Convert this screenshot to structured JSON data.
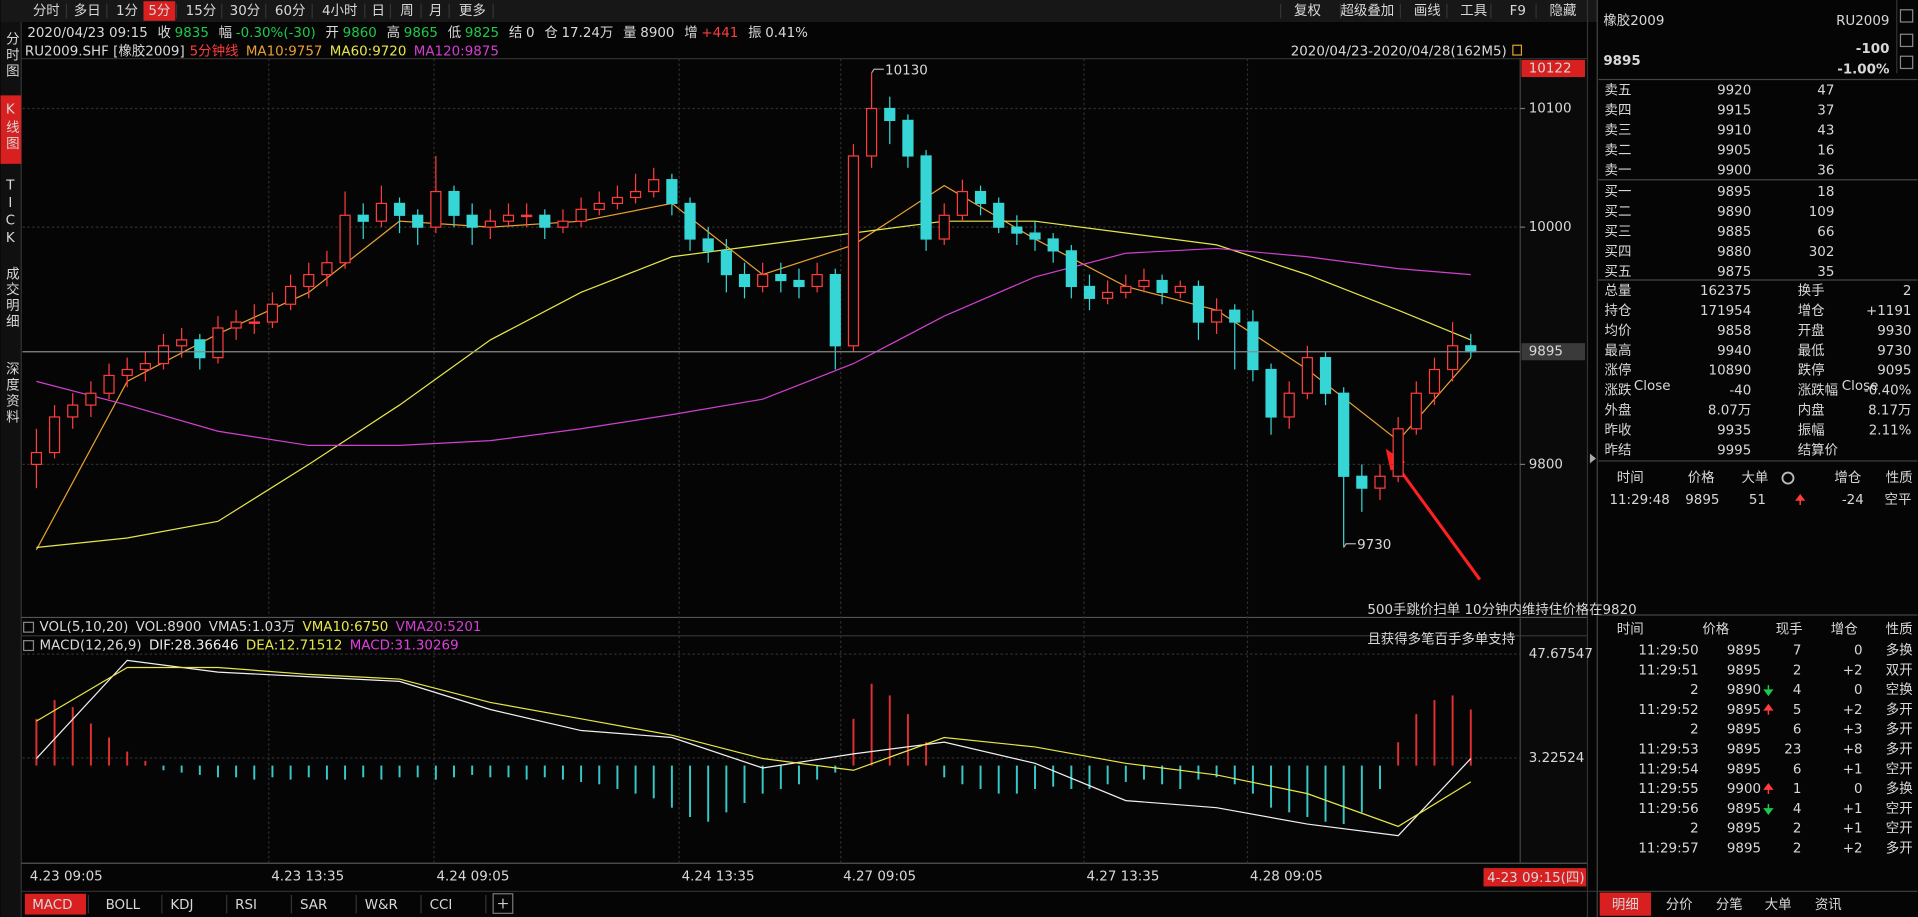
{
  "toolbar": {
    "periods": [
      "分时",
      "多日",
      "1分",
      "5分",
      "15分",
      "30分",
      "60分",
      "4小时",
      "日",
      "周",
      "月",
      "更多"
    ],
    "active_period": 3,
    "tools": [
      "复权",
      "超级叠加",
      "画线",
      "工具",
      "F9",
      "隐藏"
    ]
  },
  "sidebar": {
    "tabs": [
      "分时图",
      "K线图",
      "TICK",
      "成交明细",
      "深度资料"
    ],
    "active": 1
  },
  "quote_bar": {
    "time": "2020/04/23 09:15",
    "fields": [
      {
        "label": "收",
        "value": "9835",
        "color": "#1ec84b"
      },
      {
        "label": "幅",
        "value": "-0.30%(-30)",
        "color": "#1ec84b"
      },
      {
        "label": "开",
        "value": "9860",
        "color": "#1ec84b"
      },
      {
        "label": "高",
        "value": "9865",
        "color": "#1ec84b"
      },
      {
        "label": "低",
        "value": "9825",
        "color": "#1ec84b"
      },
      {
        "label": "结",
        "value": "0",
        "color": "#d8d8d8"
      },
      {
        "label": "仓",
        "value": "17.24万",
        "color": "#d8d8d8"
      },
      {
        "label": "量",
        "value": "8900",
        "color": "#d8d8d8"
      },
      {
        "label": "增",
        "value": "+441",
        "color": "#ff3c3c"
      },
      {
        "label": "振",
        "value": "0.41%",
        "color": "#d8d8d8"
      }
    ]
  },
  "chart_data": [
    {
      "type": "candlestick",
      "symbol": "RU2009.SHF [橡胶2009]",
      "period": "5分钟线",
      "range_label": "2020/04/23-2020/04/28(162M5)",
      "up_color": "#ff3c3c",
      "down_color": "#36d6d6",
      "grid": true,
      "xlim": [
        -0.5,
        79.5
      ],
      "ylim": [
        9671,
        10142
      ],
      "yticks": [
        9800,
        10000,
        10100
      ],
      "top_price_label": 10122,
      "last_price": 9895,
      "candles": [
        [
          9800,
          9830,
          9780,
          9810
        ],
        [
          9810,
          9850,
          9805,
          9840
        ],
        [
          9840,
          9860,
          9830,
          9850
        ],
        [
          9850,
          9870,
          9840,
          9860
        ],
        [
          9860,
          9885,
          9855,
          9875
        ],
        [
          9875,
          9890,
          9865,
          9880
        ],
        [
          9880,
          9895,
          9870,
          9885
        ],
        [
          9885,
          9910,
          9880,
          9900
        ],
        [
          9900,
          9915,
          9890,
          9905
        ],
        [
          9905,
          9910,
          9880,
          9890
        ],
        [
          9890,
          9925,
          9885,
          9915
        ],
        [
          9915,
          9930,
          9905,
          9920
        ],
        [
          9920,
          9935,
          9910,
          9920
        ],
        [
          9920,
          9945,
          9915,
          9935
        ],
        [
          9935,
          9960,
          9930,
          9950
        ],
        [
          9950,
          9970,
          9940,
          9960
        ],
        [
          9960,
          9980,
          9950,
          9970
        ],
        [
          9970,
          10030,
          9965,
          10010
        ],
        [
          10010,
          10020,
          9990,
          10005
        ],
        [
          10005,
          10035,
          10000,
          10020
        ],
        [
          10020,
          10025,
          9995,
          10010
        ],
        [
          10010,
          10015,
          9985,
          10000
        ],
        [
          10000,
          10060,
          9995,
          10030
        ],
        [
          10030,
          10035,
          10000,
          10010
        ],
        [
          10010,
          10020,
          9985,
          10000
        ],
        [
          10000,
          10015,
          9990,
          10005
        ],
        [
          10005,
          10020,
          10000,
          10010
        ],
        [
          10010,
          10020,
          10000,
          10010
        ],
        [
          10010,
          10015,
          9990,
          10000
        ],
        [
          10000,
          10015,
          9995,
          10005
        ],
        [
          10005,
          10025,
          10000,
          10015
        ],
        [
          10015,
          10030,
          10010,
          10020
        ],
        [
          10020,
          10035,
          10015,
          10025
        ],
        [
          10025,
          10045,
          10020,
          10030
        ],
        [
          10030,
          10050,
          10025,
          10040
        ],
        [
          10040,
          10045,
          10010,
          10020
        ],
        [
          10020,
          10025,
          9980,
          9990
        ],
        [
          9990,
          10000,
          9970,
          9980
        ],
        [
          9980,
          9990,
          9945,
          9960
        ],
        [
          9960,
          9970,
          9940,
          9950
        ],
        [
          9950,
          9970,
          9945,
          9960
        ],
        [
          9960,
          9970,
          9945,
          9955
        ],
        [
          9955,
          9965,
          9940,
          9950
        ],
        [
          9950,
          9970,
          9945,
          9960
        ],
        [
          9960,
          9965,
          9880,
          9900
        ],
        [
          9900,
          10070,
          9895,
          10060
        ],
        [
          10060,
          10130,
          10050,
          10100
        ],
        [
          10100,
          10110,
          10070,
          10090
        ],
        [
          10090,
          10095,
          10050,
          10060
        ],
        [
          10060,
          10065,
          9980,
          9990
        ],
        [
          9990,
          10020,
          9985,
          10010
        ],
        [
          10010,
          10040,
          10005,
          10030
        ],
        [
          10030,
          10035,
          10010,
          10020
        ],
        [
          10020,
          10025,
          9995,
          10000
        ],
        [
          10000,
          10010,
          9985,
          9995
        ],
        [
          9995,
          10005,
          9980,
          9990
        ],
        [
          9990,
          9995,
          9970,
          9980
        ],
        [
          9980,
          9985,
          9940,
          9950
        ],
        [
          9950,
          9960,
          9930,
          9940
        ],
        [
          9940,
          9955,
          9935,
          9945
        ],
        [
          9945,
          9960,
          9940,
          9950
        ],
        [
          9950,
          9965,
          9945,
          9955
        ],
        [
          9955,
          9960,
          9935,
          9945
        ],
        [
          9945,
          9955,
          9940,
          9950
        ],
        [
          9950,
          9955,
          9905,
          9920
        ],
        [
          9920,
          9940,
          9910,
          9930
        ],
        [
          9930,
          9935,
          9880,
          9920
        ],
        [
          9920,
          9930,
          9870,
          9880
        ],
        [
          9880,
          9885,
          9825,
          9840
        ],
        [
          9840,
          9870,
          9830,
          9860
        ],
        [
          9860,
          9900,
          9855,
          9890
        ],
        [
          9890,
          9895,
          9850,
          9860
        ],
        [
          9860,
          9865,
          9730,
          9790
        ],
        [
          9790,
          9800,
          9760,
          9780
        ],
        [
          9780,
          9800,
          9770,
          9790
        ],
        [
          9790,
          9840,
          9785,
          9830
        ],
        [
          9830,
          9870,
          9825,
          9860
        ],
        [
          9860,
          9890,
          9850,
          9880
        ],
        [
          9880,
          9920,
          9870,
          9900
        ],
        [
          9900,
          9910,
          9890,
          9895
        ]
      ],
      "x": [
        0,
        5,
        10,
        15,
        20,
        25,
        30,
        35,
        40,
        45,
        50,
        55,
        60,
        65,
        70,
        75,
        79
      ],
      "series": [
        {
          "name": "MA10:9757",
          "color": "#e8a030",
          "values": [
            9728,
            9870,
            9910,
            9945,
            10005,
            10000,
            10005,
            10020,
            9960,
            9985,
            10035,
            9990,
            9950,
            9930,
            9880,
            9820,
            9890
          ]
        },
        {
          "name": "MA60:9720",
          "color": "#e6e64a",
          "values": [
            9730,
            9738,
            9752,
            9800,
            9850,
            9905,
            9945,
            9975,
            9985,
            9995,
            10005,
            10005,
            9995,
            9985,
            9960,
            9930,
            9905
          ]
        },
        {
          "name": "MA120:9875",
          "color": "#d040d0",
          "values": [
            9870,
            9850,
            9828,
            9816,
            9816,
            9820,
            9830,
            9842,
            9855,
            9885,
            9925,
            9958,
            9978,
            9982,
            9975,
            9965,
            9960
          ]
        }
      ],
      "annotations": [
        {
          "index": 46,
          "value": 10130,
          "color": "#ff3c3c"
        },
        {
          "index": 72,
          "value": 9730,
          "color": "#1ec84b"
        }
      ],
      "note": [
        "500手跳价扫单 10分钟内维持住价格在9820",
        "且获得多笔百手多单支持"
      ]
    },
    {
      "type": "macd",
      "title": "MACD(12,26,9)",
      "xlim": [
        -0.5,
        79.5
      ],
      "ylim": [
        -41.23,
        47.67547
      ],
      "yticks": [
        47.67547,
        3.22524
      ],
      "xticks": [
        {
          "value": -0.5,
          "label": "4.23 09:05"
        },
        {
          "value": 12.8,
          "label": "4.23 13:35"
        },
        {
          "value": 21.9,
          "label": "4.24 09:05"
        },
        {
          "value": 35.4,
          "label": "4.24 13:35"
        },
        {
          "value": 44.3,
          "label": "4.27 09:05"
        },
        {
          "value": 57.7,
          "label": "4.27 13:35"
        },
        {
          "value": 66.7,
          "label": "4.28 09:05"
        }
      ],
      "cursor_label": "4-23 09:15(四)",
      "histogram": {
        "name": "MACD:31.30269",
        "color": "#e040e0",
        "up_color": "#e03030",
        "down_color": "#36c8c8",
        "values": [
          20,
          28,
          25,
          18,
          12,
          6,
          2,
          -2,
          -3,
          -4,
          -5,
          -5,
          -6,
          -5,
          -6,
          -5,
          -6,
          -6,
          -5,
          -6,
          -5,
          -5,
          -6,
          -5,
          -4,
          -5,
          -5,
          -6,
          -5,
          -6,
          -7,
          -8,
          -10,
          -12,
          -14,
          -18,
          -22,
          -24,
          -20,
          -16,
          -12,
          -10,
          -8,
          -6,
          -3,
          20,
          35,
          30,
          22,
          10,
          -5,
          -8,
          -10,
          -12,
          -12,
          -10,
          -9,
          -10,
          -10,
          -8,
          -7,
          -6,
          -8,
          -10,
          -6,
          -5,
          -8,
          -12,
          -18,
          -20,
          -22,
          -24,
          -25,
          -20,
          -10,
          10,
          22,
          28,
          30,
          24
        ]
      },
      "x": [
        0,
        5,
        10,
        15,
        20,
        25,
        30,
        35,
        40,
        45,
        50,
        55,
        60,
        65,
        70,
        75,
        79
      ],
      "series": [
        {
          "name": "DIF:28.36646",
          "color": "#f0f0f0",
          "values": [
            3,
            45,
            40,
            38,
            36,
            24,
            15,
            12,
            -1,
            5,
            10,
            1,
            -15,
            -18,
            -25,
            -30,
            3
          ]
        },
        {
          "name": "DEA:12.71512",
          "color": "#e6e64a",
          "values": [
            19,
            42,
            42,
            39,
            37,
            27,
            20,
            13,
            3,
            -2,
            12,
            8,
            1,
            -4,
            -12,
            -26,
            -7
          ]
        }
      ]
    }
  ],
  "vol_header": [
    {
      "text": "VOL(5,10,20)",
      "color": "#d8d8d8"
    },
    {
      "text": "VOL:8900",
      "color": "#d8d8d8"
    },
    {
      "text": "VMA5:1.03万",
      "color": "#d8d8d8"
    },
    {
      "text": "VMA10:6750",
      "color": "#e6e64a"
    },
    {
      "text": "VMA20:5201",
      "color": "#d040d0"
    }
  ],
  "indicator_tabs": {
    "tabs": [
      "MACD",
      "BOLL",
      "KDJ",
      "RSI",
      "SAR",
      "W&R",
      "CCI"
    ],
    "active": 0
  },
  "quote": {
    "name": "橡胶2009",
    "code": "RU2009",
    "price": "9895",
    "change": "-100",
    "change_pct": "-1.00%"
  },
  "order_book": {
    "price_color": "#1ec84b",
    "rows": [
      {
        "label": "卖五",
        "price": "9920",
        "volume": "47"
      },
      {
        "label": "卖四",
        "price": "9915",
        "volume": "37"
      },
      {
        "label": "卖三",
        "price": "9910",
        "volume": "43"
      },
      {
        "label": "卖二",
        "price": "9905",
        "volume": "16"
      },
      {
        "label": "卖一",
        "price": "9900",
        "volume": "36"
      },
      {
        "label": "买一",
        "price": "9895",
        "volume": "18"
      },
      {
        "label": "买二",
        "price": "9890",
        "volume": "109"
      },
      {
        "label": "买三",
        "price": "9885",
        "volume": "66"
      },
      {
        "label": "买四",
        "price": "9880",
        "volume": "302"
      },
      {
        "label": "买五",
        "price": "9875",
        "volume": "35"
      }
    ]
  },
  "stats": [
    {
      "label": "总量",
      "value": "162375",
      "c1": "#d8d8d8",
      "label2": "换手",
      "value2": "2",
      "c2": "#d8d8d8"
    },
    {
      "label": "持仓",
      "value": "171954",
      "c1": "#d8d8d8",
      "label2": "增仓",
      "value2": "+1191",
      "c2": "#ff3c3c"
    },
    {
      "label": "均价",
      "value": "9858",
      "c1": "#1ec84b",
      "label2": "开盘",
      "value2": "9930",
      "c2": "#1ec84b"
    },
    {
      "label": "最高",
      "value": "9940",
      "c1": "#1ec84b",
      "label2": "最低",
      "value2": "9730",
      "c2": "#1ec84b"
    },
    {
      "label": "涨停",
      "value": "10890",
      "c1": "#ff3c3c",
      "label2": "跌停",
      "value2": "9095",
      "c2": "#1ec84b"
    },
    {
      "label": "涨跌",
      "sup": "Close",
      "value": "-40",
      "c1": "#1ec84b",
      "label2": "涨跌幅",
      "sup2": "Close",
      "value2": "-0.40%",
      "c2": "#1ec84b"
    },
    {
      "label": "外盘",
      "value": "8.07万",
      "c1": "#ff3c3c",
      "label2": "内盘",
      "value2": "8.17万",
      "c2": "#1ec84b"
    },
    {
      "label": "昨收",
      "value": "9935",
      "c1": "#d8d8d8",
      "label2": "振幅",
      "value2": "2.11%",
      "c2": "#d8d8d8"
    },
    {
      "label": "昨结",
      "value": "9995",
      "c1": "#d8d8d8",
      "label2": "结算价"
    }
  ],
  "big_orders": {
    "headers": [
      "时间",
      "价格",
      "大单",
      "增仓",
      "性质"
    ],
    "rows": [
      {
        "time": "11:29:48",
        "price": "9895",
        "size": "51",
        "arrow": "up",
        "oi": "-24",
        "type": "空平"
      }
    ]
  },
  "ticks": {
    "headers": [
      "时间",
      "价格",
      "现手",
      "增仓",
      "性质"
    ],
    "rows": [
      {
        "time": "11:29:50",
        "price": "9895",
        "volume": "7",
        "vc": "#ff3c3c",
        "oi": "0",
        "type": "多换",
        "tc": "#ff3c3c"
      },
      {
        "time": "11:29:51",
        "price": "9895",
        "volume": "2",
        "vc": "#ff3c3c",
        "oi": "+2",
        "type": "双开",
        "tc": "#d8d8d8"
      },
      {
        "time": "2",
        "price": "9890",
        "arrow": "down",
        "volume": "4",
        "vc": "#1ec84b",
        "oi": "0",
        "type": "空换",
        "tc": "#1ec84b"
      },
      {
        "time": "11:29:52",
        "price": "9895",
        "arrow": "up",
        "volume": "5",
        "vc": "#ff3c3c",
        "oi": "+2",
        "type": "多开",
        "tc": "#ff3c3c"
      },
      {
        "time": "2",
        "price": "9895",
        "volume": "6",
        "vc": "#ff3c3c",
        "oi": "+3",
        "type": "多开",
        "tc": "#ff3c3c"
      },
      {
        "time": "11:29:53",
        "price": "9895",
        "volume": "23",
        "vc": "#ff3c3c",
        "oi": "+8",
        "type": "多开",
        "tc": "#ff3c3c"
      },
      {
        "time": "11:29:54",
        "price": "9895",
        "volume": "6",
        "vc": "#1ec84b",
        "oi": "+1",
        "type": "空开",
        "tc": "#1ec84b"
      },
      {
        "time": "11:29:55",
        "price": "9900",
        "arrow": "up",
        "volume": "1",
        "vc": "#ff3c3c",
        "oi": "0",
        "type": "多换",
        "tc": "#ff3c3c"
      },
      {
        "time": "11:29:56",
        "price": "9895",
        "arrow": "down",
        "volume": "4",
        "vc": "#1ec84b",
        "oi": "+1",
        "type": "空开",
        "tc": "#1ec84b"
      },
      {
        "time": "2",
        "price": "9895",
        "volume": "2",
        "vc": "#1ec84b",
        "oi": "+1",
        "type": "空开",
        "tc": "#1ec84b"
      },
      {
        "time": "11:29:57",
        "price": "9895",
        "volume": "2",
        "vc": "#1ec84b",
        "oi": "+2",
        "type": "多开",
        "tc": "#1ec84b"
      }
    ]
  },
  "bottom_tabs": {
    "tabs": [
      "明细",
      "分价",
      "分笔",
      "大单",
      "资讯"
    ],
    "active": 0
  }
}
